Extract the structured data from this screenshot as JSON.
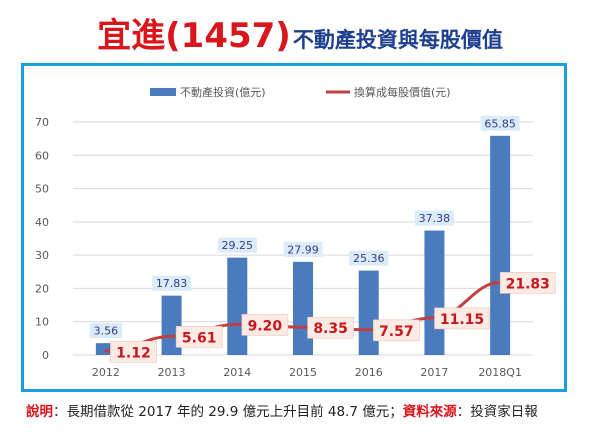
{
  "title": {
    "main": "宜進(1457)",
    "sub": "不動產投資與每股價值"
  },
  "legend": {
    "bar_label": "不動產投資(億元)",
    "line_label": "換算成每股價值(元)"
  },
  "colors": {
    "bar": "#4a7bbf",
    "line": "#c0403f",
    "frame": "#1a9fe0",
    "title_red": "#d9161c",
    "title_blue": "#1f3f8f",
    "bar_label_bg": "#d9ecf7",
    "bar_label_text": "#3a3a8c",
    "line_label_text": "#c8161c",
    "line_label_bg": "#fcebe4"
  },
  "chart_data": {
    "type": "bar",
    "categories": [
      "2012",
      "2013",
      "2014",
      "2015",
      "2016",
      "2017",
      "2018Q1"
    ],
    "ylim": [
      0,
      70
    ],
    "yticks": [
      "0",
      "10",
      "20",
      "30",
      "40",
      "50",
      "60",
      "70"
    ],
    "series": [
      {
        "name": "不動產投資(億元)",
        "type": "bar",
        "values": [
          3.56,
          17.83,
          29.25,
          27.99,
          25.36,
          37.38,
          65.85
        ],
        "labels": [
          "3.56",
          "17.83",
          "29.25",
          "27.99",
          "25.36",
          "37.38",
          "65.85"
        ]
      },
      {
        "name": "換算成每股價值(元)",
        "type": "line",
        "values": [
          1.12,
          5.61,
          9.2,
          8.35,
          7.57,
          11.15,
          21.83
        ],
        "labels": [
          "1.12",
          "5.61",
          "9.20",
          "8.35",
          "7.57",
          "11.15",
          "21.83"
        ]
      }
    ],
    "grid": true,
    "legend_position": "top"
  },
  "footnote": {
    "label1": "說明",
    "text1": "：長期借款從 2017 年的 29.9 億元上升目前 48.7 億元；",
    "label2": "資料來源",
    "text2": "：投資家日報"
  }
}
